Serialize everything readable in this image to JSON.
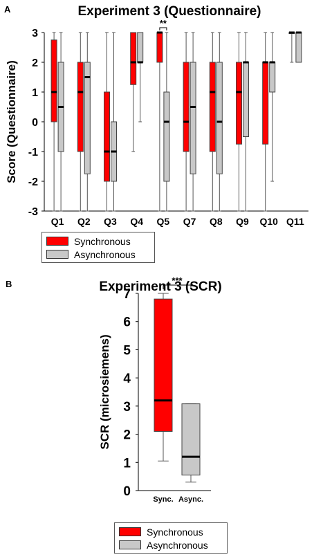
{
  "panels": {
    "a_letter": "A",
    "b_letter": "B"
  },
  "legend": {
    "items": [
      {
        "label": "Synchronous",
        "color": "#ff0000"
      },
      {
        "label": "Asynchronous",
        "color": "#c8c8c8"
      }
    ]
  },
  "chart_data": [
    {
      "type": "box",
      "title": "Experiment 3 (Questionnaire)",
      "ylabel": "Score (Questionnaire)",
      "ylim": [
        -3,
        3
      ],
      "yticks": [
        -3,
        -2,
        -1,
        0,
        1,
        2,
        3
      ],
      "categories": [
        "Q1",
        "Q2",
        "Q3",
        "Q4",
        "Q5",
        "Q7",
        "Q8",
        "Q9",
        "Q10",
        "Q11"
      ],
      "significance": [
        {
          "category": "Q5",
          "label": "**"
        }
      ],
      "series": [
        {
          "name": "Synchronous",
          "color": "#ff0000",
          "boxes": [
            {
              "min": -3,
              "q1": 0,
              "median": 1,
              "q3": 2.75,
              "max": 3
            },
            {
              "min": -3,
              "q1": -1,
              "median": 1,
              "q3": 2,
              "max": 3
            },
            {
              "min": -3,
              "q1": -2,
              "median": -1,
              "q3": 1,
              "max": 3
            },
            {
              "min": -1,
              "q1": 1.25,
              "median": 2,
              "q3": 3,
              "max": 3
            },
            {
              "min": -3,
              "q1": 2,
              "median": 3,
              "q3": 3,
              "max": 3
            },
            {
              "min": -3,
              "q1": -1,
              "median": 0,
              "q3": 2,
              "max": 3
            },
            {
              "min": -3,
              "q1": -1,
              "median": 1,
              "q3": 2,
              "max": 3
            },
            {
              "min": -3,
              "q1": -0.75,
              "median": 1,
              "q3": 2,
              "max": 3
            },
            {
              "min": -3,
              "q1": -0.75,
              "median": 2,
              "q3": 2,
              "max": 3
            },
            {
              "min": 2,
              "q1": 3,
              "median": 3,
              "q3": 3,
              "max": 3
            }
          ]
        },
        {
          "name": "Asynchronous",
          "color": "#c8c8c8",
          "boxes": [
            {
              "min": -3,
              "q1": -1,
              "median": 0.5,
              "q3": 2,
              "max": 3
            },
            {
              "min": -3,
              "q1": -1.75,
              "median": 1.5,
              "q3": 2,
              "max": 3
            },
            {
              "min": -3,
              "q1": -2,
              "median": -1,
              "q3": 0,
              "max": 3
            },
            {
              "min": 0,
              "q1": 2,
              "median": 2,
              "q3": 3,
              "max": 3
            },
            {
              "min": -3,
              "q1": -2,
              "median": 0,
              "q3": 1,
              "max": 3
            },
            {
              "min": -3,
              "q1": -1.75,
              "median": 0.5,
              "q3": 2,
              "max": 3
            },
            {
              "min": -3,
              "q1": -1.75,
              "median": 0,
              "q3": 2,
              "max": 3
            },
            {
              "min": -3,
              "q1": -0.5,
              "median": 2,
              "q3": 2,
              "max": 3
            },
            {
              "min": -2,
              "q1": 1,
              "median": 2,
              "q3": 2,
              "max": 3
            },
            {
              "min": 2,
              "q1": 2,
              "median": 3,
              "q3": 3,
              "max": 3
            }
          ]
        }
      ]
    },
    {
      "type": "box",
      "title": "Experiment 3 (SCR)",
      "ylabel": "SCR (microsiemens)",
      "ylim": [
        0,
        7
      ],
      "yticks": [
        0,
        1,
        2,
        3,
        4,
        5,
        6,
        7
      ],
      "categories": [
        "Sync.",
        "Async."
      ],
      "significance": [
        {
          "between": [
            "Sync.",
            "Async."
          ],
          "label": "***"
        }
      ],
      "boxes": [
        {
          "category": "Sync.",
          "color": "#ff0000",
          "min": 1.05,
          "q1": 2.1,
          "median": 3.2,
          "q3": 6.8,
          "max": 7.0
        },
        {
          "category": "Async.",
          "color": "#c8c8c8",
          "min": 0.3,
          "q1": 0.55,
          "median": 1.2,
          "q3": 3.08,
          "max": 3.08
        }
      ]
    }
  ]
}
